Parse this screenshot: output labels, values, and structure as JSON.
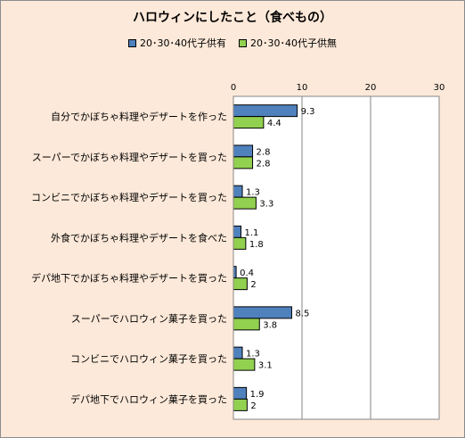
{
  "chart_data": {
    "type": "bar",
    "orientation": "horizontal",
    "title": "ハロウィンにしたこと（食べもの）",
    "categories": [
      "自分でかぼちゃ料理やデザートを作った",
      "スーパーでかぼちゃ料理やデザートを買った",
      "コンビニでかぼちゃ料理やデザートを買った",
      "外食でかぼちゃ料理やデザートを食べた",
      "デパ地下でかぼちゃ料理やデザートを買った",
      "スーパーでハロウィン菓子を買った",
      "コンビニでハロウィン菓子を買った",
      "デパ地下でハロウィン菓子を買った"
    ],
    "series": [
      {
        "name": "20･30･40代子供有",
        "color": "#4f81bd",
        "values": [
          9.3,
          2.8,
          1.3,
          1.1,
          0.4,
          8.5,
          1.3,
          1.9
        ],
        "labels": [
          "9.3",
          "2.8",
          "1.3",
          "1.1",
          "0.4",
          "8.5",
          "1.3",
          "1.9"
        ]
      },
      {
        "name": "20･30･40代子供無",
        "color": "#92d050",
        "values": [
          4.4,
          2.8,
          3.3,
          1.8,
          2,
          3.8,
          3.1,
          2
        ],
        "labels": [
          "4.4",
          "2.8",
          "3.3",
          "1.8",
          "2",
          "3.8",
          "3.1",
          "2"
        ]
      }
    ],
    "xlim": [
      0,
      30
    ],
    "xticks": [
      0,
      10,
      20,
      30
    ],
    "xtick_labels": [
      "0",
      "10",
      "20",
      "30"
    ],
    "grid": true,
    "legend_position": "top"
  }
}
